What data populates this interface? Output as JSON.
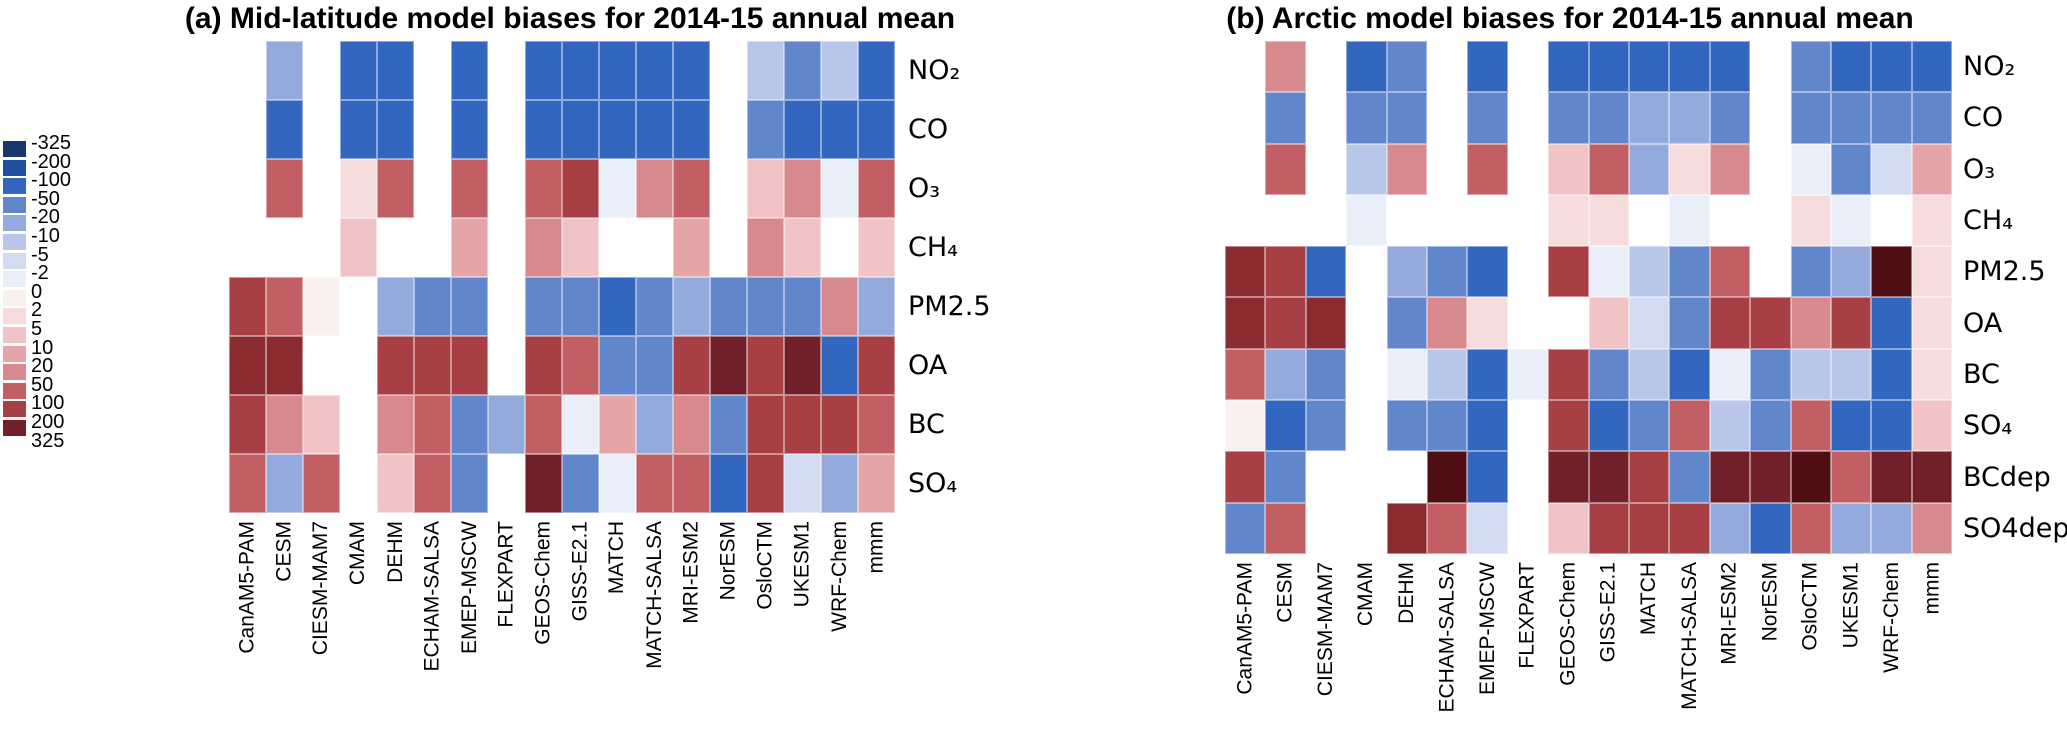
{
  "chart_data": {
    "type": "heatmap",
    "legend_thresholds": [
      "-325",
      "-200",
      "-100",
      "-50",
      "-20",
      "-10",
      "-5",
      "-2",
      "0",
      "2",
      "5",
      "10",
      "20",
      "50",
      "100",
      "200",
      "325"
    ],
    "legend_colors": [
      "#17386e",
      "#20509d",
      "#3366bf",
      "#6286cc",
      "#94aadc",
      "#b8c6ea",
      "#d2dbf2",
      "#eaeef9",
      "#f9f1f0",
      "#f7dcde",
      "#f1c3c7",
      "#e5a4a8",
      "#d8898d",
      "#c25f65",
      "#a83f45",
      "#71202a"
    ],
    "palette": {
      "b1": "#17386e",
      "b2": "#20509d",
      "b3": "#3366bf",
      "b4": "#6286cc",
      "b5": "#94aadc",
      "b6": "#b8c6ea",
      "b7": "#d2dbf2",
      "b8": "#eaeef9",
      "w0": "#f9f1f0",
      "r1": "#f7dcde",
      "r2": "#f1c3c7",
      "r3": "#e5a4a8",
      "r4": "#d8898d",
      "r5": "#c25f65",
      "r6": "#a83f45",
      "r7": "#8b2b30",
      "r8": "#71202a",
      "r9": "#4f0d14"
    },
    "bin_ranges": {
      "b1": "-325 to -200",
      "b2": "-200 to -100",
      "b3": "-100 to -50",
      "b4": "-50 to -20",
      "b5": "-20 to -10",
      "b6": "-10 to -5",
      "b7": "-5 to -2",
      "b8": "-2 to 0",
      "w0": "0 to 2",
      "r1": "2 to 5",
      "r2": "5 to 10",
      "r3": "10 to 20",
      "r4": "20 to 50",
      "r5": "50 to 100",
      "r6": "100 to 200",
      "r7": "about 200",
      "r8": "200 to 325",
      "r9": "over 325",
      "W": "no data"
    },
    "models": [
      "CanAM5-PAM",
      "CESM",
      "CIESM-MAM7",
      "CMAM",
      "DEHM",
      "ECHAM-SALSA",
      "EMEP-MSCW",
      "FLEXPART",
      "GEOS-Chem",
      "GISS-E2.1",
      "MATCH",
      "MATCH-SALSA",
      "MRI-ESM2",
      "NorESM",
      "OsloCTM",
      "UKESM1",
      "WRF-Chem",
      "mmm"
    ],
    "panels": [
      {
        "id": "a",
        "title": "(a) Mid-latitude model biases for 2014-15 annual mean",
        "species": [
          "NO₂",
          "CO",
          "O₃",
          "CH₄",
          "PM2.5",
          "OA",
          "BC",
          "SO₄"
        ],
        "grid": [
          [
            "W",
            "b5",
            "W",
            "b3",
            "b3",
            "W",
            "b3",
            "W",
            "b3",
            "b3",
            "b3",
            "b3",
            "b3",
            "W",
            "b6",
            "b4",
            "b6",
            "b3"
          ],
          [
            "W",
            "b3",
            "W",
            "b3",
            "b3",
            "W",
            "b3",
            "W",
            "b3",
            "b3",
            "b3",
            "b3",
            "b3",
            "W",
            "b4",
            "b3",
            "b3",
            "b3"
          ],
          [
            "W",
            "r5",
            "W",
            "r1",
            "r5",
            "W",
            "r5",
            "W",
            "r5",
            "r6",
            "b8",
            "r4",
            "r5",
            "W",
            "r2",
            "r4",
            "b8",
            "r5"
          ],
          [
            "W",
            "W",
            "W",
            "r2",
            "W",
            "W",
            "r3",
            "W",
            "r4",
            "r2",
            "W",
            "W",
            "r3",
            "W",
            "r4",
            "r2",
            "W",
            "r2"
          ],
          [
            "r6",
            "r5",
            "w0",
            "W",
            "b5",
            "b4",
            "b4",
            "W",
            "b4",
            "b4",
            "b3",
            "b4",
            "b5",
            "b4",
            "b4",
            "b4",
            "r4",
            "b5"
          ],
          [
            "r7",
            "r7",
            "W",
            "W",
            "r6",
            "r6",
            "r6",
            "W",
            "r6",
            "r5",
            "b4",
            "b4",
            "r6",
            "r8",
            "r6",
            "r8",
            "b3",
            "r6"
          ],
          [
            "r6",
            "r4",
            "r2",
            "W",
            "r4",
            "r5",
            "b4",
            "b5",
            "r5",
            "b8",
            "r3",
            "b5",
            "r4",
            "b4",
            "r6",
            "r6",
            "r6",
            "r5"
          ],
          [
            "r5",
            "b5",
            "r5",
            "W",
            "r2",
            "r5",
            "b4",
            "W",
            "r8",
            "b4",
            "b8",
            "r5",
            "r5",
            "b3",
            "r6",
            "b7",
            "b5",
            "r3"
          ]
        ]
      },
      {
        "id": "b",
        "title": "(b) Arctic model biases for 2014-15 annual mean",
        "species": [
          "NO₂",
          "CO",
          "O₃",
          "CH₄",
          "PM2.5",
          "OA",
          "BC",
          "SO₄",
          "BCdep",
          "SO4dep"
        ],
        "grid": [
          [
            "W",
            "r4",
            "W",
            "b3",
            "b4",
            "W",
            "b3",
            "W",
            "b3",
            "b3",
            "b3",
            "b3",
            "b3",
            "W",
            "b4",
            "b3",
            "b3",
            "b3"
          ],
          [
            "W",
            "b4",
            "W",
            "b4",
            "b4",
            "W",
            "b4",
            "W",
            "b4",
            "b4",
            "b5",
            "b5",
            "b4",
            "W",
            "b4",
            "b4",
            "b4",
            "b4"
          ],
          [
            "W",
            "r5",
            "W",
            "b6",
            "r4",
            "W",
            "r5",
            "W",
            "r2",
            "r5",
            "b5",
            "r1",
            "r4",
            "W",
            "b8",
            "b4",
            "b7",
            "r3"
          ],
          [
            "W",
            "W",
            "W",
            "b8",
            "W",
            "W",
            "W",
            "W",
            "r1",
            "r1",
            "W",
            "b8",
            "W",
            "W",
            "r1",
            "b8",
            "W",
            "r1"
          ],
          [
            "r7",
            "r6",
            "b3",
            "W",
            "b5",
            "b4",
            "b3",
            "W",
            "r6",
            "b8",
            "b6",
            "b4",
            "r5",
            "W",
            "b4",
            "b5",
            "r9",
            "r1"
          ],
          [
            "r7",
            "r6",
            "r7",
            "W",
            "b4",
            "r4",
            "r1",
            "W",
            "W",
            "r2",
            "b7",
            "b4",
            "r6",
            "r6",
            "r4",
            "r6",
            "b3",
            "r1"
          ],
          [
            "r5",
            "b5",
            "b4",
            "W",
            "b8",
            "b6",
            "b3",
            "b8",
            "r6",
            "b4",
            "b6",
            "b3",
            "b8",
            "b4",
            "b6",
            "b6",
            "b3",
            "r1"
          ],
          [
            "w0",
            "b3",
            "b4",
            "W",
            "b4",
            "b4",
            "b3",
            "W",
            "r6",
            "b3",
            "b4",
            "r5",
            "b6",
            "b4",
            "r5",
            "b3",
            "b3",
            "r2"
          ],
          [
            "r6",
            "b4",
            "W",
            "W",
            "W",
            "r9",
            "b3",
            "W",
            "r8",
            "r8",
            "r6",
            "b4",
            "r8",
            "r8",
            "r9",
            "r5",
            "r8",
            "r8"
          ],
          [
            "b4",
            "r5",
            "W",
            "W",
            "r7",
            "r5",
            "b7",
            "W",
            "r2",
            "r6",
            "r6",
            "r6",
            "b5",
            "b3",
            "r5",
            "b5",
            "b5",
            "r4"
          ]
        ]
      }
    ]
  }
}
